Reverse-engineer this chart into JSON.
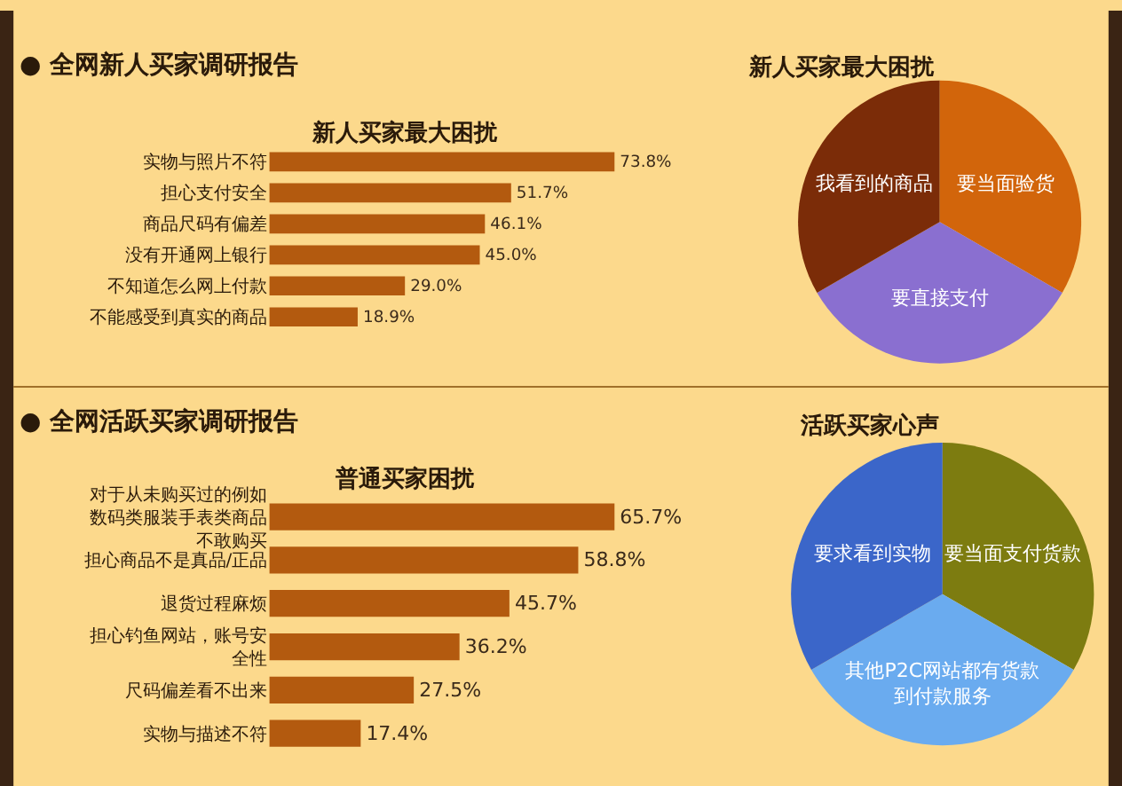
{
  "chart_data": [
    {
      "type": "bar",
      "orientation": "horizontal",
      "title": "新人买家最大困扰",
      "annotations": [
        "● 全网新人买家调研报告"
      ],
      "categories": [
        "实物与照片不符",
        "担心支付安全",
        "商品尺码有偏差",
        "没有开通网上银行",
        "不知道怎么网上付款",
        "不能感受到真实的商品"
      ],
      "values": [
        73.8,
        51.7,
        46.1,
        45.0,
        29.0,
        18.9
      ],
      "color": "#b35a0f",
      "value_labels": [
        "73.8%",
        "51.7%",
        "46.1%",
        "45.0%",
        "29.0%",
        "18.9%"
      ]
    },
    {
      "type": "pie",
      "title": "新人买家最大困扰",
      "categories": [
        "要当面验货",
        "要直接支付",
        "我看到的商品"
      ],
      "values": [
        33.3,
        33.3,
        33.3
      ],
      "colors": [
        "#d2650b",
        "#8a6fd0",
        "#7b2c08"
      ]
    },
    {
      "type": "bar",
      "orientation": "horizontal",
      "title": "普通买家困扰",
      "annotations": [
        "● 全网活跃买家调研报告"
      ],
      "categories": [
        "对于从未购买过的例如数码类服装手表类商品不敢购买",
        "担心商品不是真品/正品",
        "退货过程麻烦",
        "担心钓鱼网站，账号安全性",
        "尺码偏差看不出来",
        "实物与描述不符"
      ],
      "values": [
        65.7,
        58.8,
        45.7,
        36.2,
        27.5,
        17.4
      ],
      "color": "#b35a0f",
      "value_labels": [
        "65.7%",
        "58.8%",
        "45.7%",
        "36.2%",
        "27.5%",
        "17.4%"
      ]
    },
    {
      "type": "pie",
      "title": "活跃买家心声",
      "categories": [
        "要当面支付货款",
        "其他P2C网站都有货款到付款服务",
        "要求看到实物"
      ],
      "values": [
        33.3,
        33.3,
        33.3
      ],
      "colors": [
        "#7d7c10",
        "#6aabef",
        "#3b66c9"
      ]
    }
  ]
}
